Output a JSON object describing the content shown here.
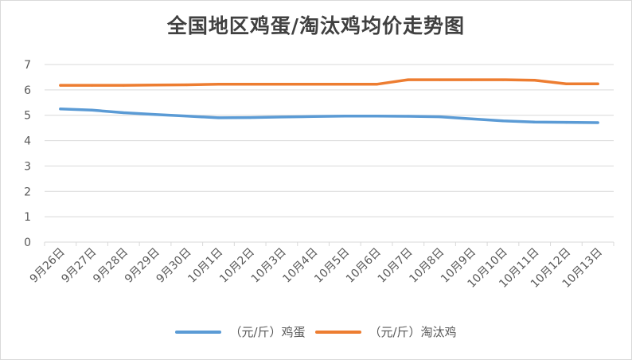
{
  "chart_data": {
    "type": "line",
    "title": "全国地区鸡蛋/淘汰鸡均价走势图",
    "xlabel": "",
    "ylabel": "",
    "ylim": [
      0,
      7
    ],
    "y_ticks": [
      "0",
      "1",
      "2",
      "3",
      "4",
      "5",
      "6",
      "7"
    ],
    "grid": true,
    "legend_position": "bottom",
    "categories": [
      "9月26日",
      "9月27日",
      "9月28日",
      "9月29日",
      "9月30日",
      "10月1日",
      "10月2日",
      "10月3日",
      "10月4日",
      "10月5日",
      "10月6日",
      "10月7日",
      "10月8日",
      "10月9日",
      "10月10日",
      "10月11日",
      "10月12日",
      "10月13日"
    ],
    "series": [
      {
        "name": "（元/斤）鸡蛋",
        "color": "#5b9bd5",
        "values": [
          5.25,
          5.2,
          5.1,
          5.03,
          4.97,
          4.9,
          4.91,
          4.93,
          4.95,
          4.97,
          4.97,
          4.96,
          4.94,
          4.86,
          4.78,
          4.73,
          4.72,
          4.71
        ]
      },
      {
        "name": "（元/斤）淘汰鸡",
        "color": "#ed7d31",
        "values": [
          6.18,
          6.18,
          6.18,
          6.19,
          6.2,
          6.22,
          6.22,
          6.22,
          6.22,
          6.22,
          6.22,
          6.4,
          6.4,
          6.4,
          6.4,
          6.38,
          6.24,
          6.24
        ]
      }
    ]
  }
}
